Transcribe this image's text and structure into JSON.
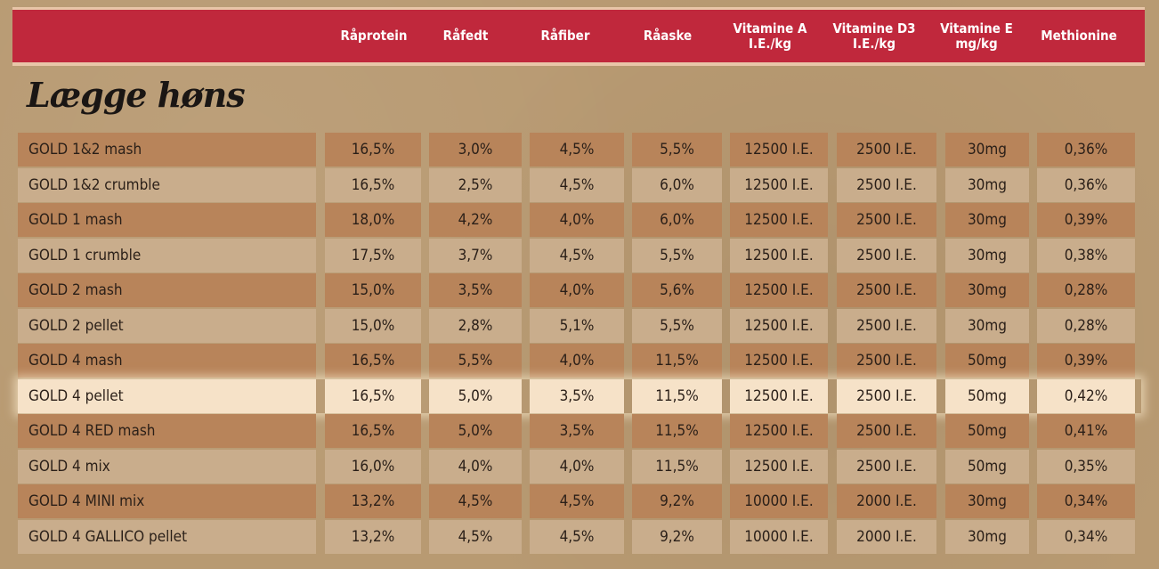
{
  "table": {
    "headers": [
      "Råprotein",
      "Råfedt",
      "Råfiber",
      "Råaske",
      "Vitamine A\nI.E./kg",
      "Vitamine D3\nI.E./kg",
      "Vitamine E\nmg/kg",
      "Methionine"
    ],
    "section_title": "Lægge høns",
    "rows": [
      {
        "name": "GOLD 1&2 mash",
        "values": [
          "16,5%",
          "3,0%",
          "4,5%",
          "5,5%",
          "12500 I.E.",
          "2500 I.E.",
          "30mg",
          "0,36%"
        ]
      },
      {
        "name": "GOLD 1&2 crumble",
        "values": [
          "16,5%",
          "2,5%",
          "4,5%",
          "6,0%",
          "12500 I.E.",
          "2500 I.E.",
          "30mg",
          "0,36%"
        ]
      },
      {
        "name": "GOLD 1 mash",
        "values": [
          "18,0%",
          "4,2%",
          "4,0%",
          "6,0%",
          "12500 I.E.",
          "2500 I.E.",
          "30mg",
          "0,39%"
        ]
      },
      {
        "name": "GOLD 1 crumble",
        "values": [
          "17,5%",
          "3,7%",
          "4,5%",
          "5,5%",
          "12500 I.E.",
          "2500 I.E.",
          "30mg",
          "0,38%"
        ]
      },
      {
        "name": "GOLD 2 mash",
        "values": [
          "15,0%",
          "3,5%",
          "4,0%",
          "5,6%",
          "12500 I.E.",
          "2500 I.E.",
          "30mg",
          "0,28%"
        ]
      },
      {
        "name": "GOLD 2 pellet",
        "values": [
          "15,0%",
          "2,8%",
          "5,1%",
          "5,5%",
          "12500 I.E.",
          "2500 I.E.",
          "30mg",
          "0,28%"
        ]
      },
      {
        "name": "GOLD 4 mash",
        "values": [
          "16,5%",
          "5,5%",
          "4,0%",
          "11,5%",
          "12500 I.E.",
          "2500 I.E.",
          "50mg",
          "0,39%"
        ]
      },
      {
        "name": "GOLD 4 pellet",
        "values": [
          "16,5%",
          "5,0%",
          "3,5%",
          "11,5%",
          "12500 I.E.",
          "2500 I.E.",
          "50mg",
          "0,42%"
        ]
      },
      {
        "name": "GOLD 4 RED mash",
        "values": [
          "16,5%",
          "5,0%",
          "3,5%",
          "11,5%",
          "12500 I.E.",
          "2500 I.E.",
          "50mg",
          "0,41%"
        ]
      },
      {
        "name": "GOLD 4 mix",
        "values": [
          "16,0%",
          "4,0%",
          "4,0%",
          "11,5%",
          "12500 I.E.",
          "2500 I.E.",
          "50mg",
          "0,35%"
        ]
      },
      {
        "name": "GOLD 4 MINI mix",
        "values": [
          "13,2%",
          "4,5%",
          "4,5%",
          "9,2%",
          "10000 I.E.",
          "2000 I.E.",
          "30mg",
          "0,34%"
        ]
      },
      {
        "name": "GOLD 4 GALLICO pellet",
        "values": [
          "13,2%",
          "4,5%",
          "4,5%",
          "9,2%",
          "10000 I.E.",
          "2000 I.E.",
          "30mg",
          "0,34%"
        ]
      }
    ],
    "highlighted_row": 7,
    "colors": {
      "header": "#c0283c",
      "dark_row": "#b8845a",
      "light_row": "#c9ad8c",
      "highlight": "#f6e2c8"
    }
  }
}
